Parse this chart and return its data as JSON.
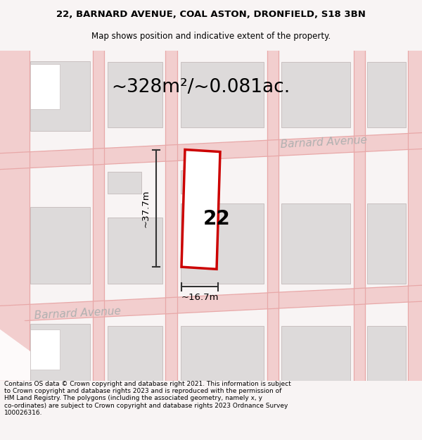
{
  "title_line1": "22, BARNARD AVENUE, COAL ASTON, DRONFIELD, S18 3BN",
  "title_line2": "Map shows position and indicative extent of the property.",
  "area_text": "~328m²/~0.081ac.",
  "property_number": "22",
  "dim_width": "~16.7m",
  "dim_height": "~37.7m",
  "street_label_lower": "Barnard Avenue",
  "street_label_upper": "Barnard Avenue",
  "copyright_text": "Contains OS data © Crown copyright and database right 2021. This information is subject\nto Crown copyright and database rights 2023 and is reproduced with the permission of\nHM Land Registry. The polygons (including the associated geometry, namely x, y\nco-ordinates) are subject to Crown copyright and database rights 2023 Ordnance Survey\n100026316.",
  "bg_color": "#f8f4f4",
  "map_bg": "#fdfafa",
  "road_color": "#f2cece",
  "road_line_color": "#e8a8a8",
  "building_fill": "#dddada",
  "building_stroke": "#c8c0c0",
  "plot_stroke": "#cc0000",
  "plot_fill": "#ffffff",
  "dim_line_color": "#333333",
  "title_color": "#000000",
  "text_color": "#000000",
  "street_text_color": "#b0b0b0"
}
